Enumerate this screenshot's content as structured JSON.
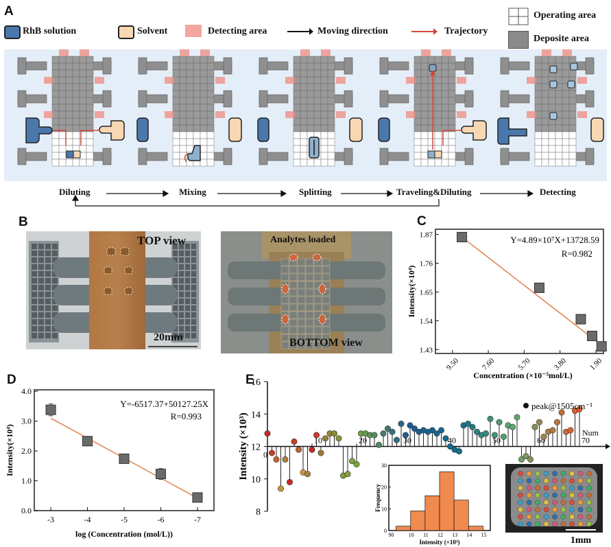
{
  "panels": {
    "a": "A",
    "b": "B",
    "c": "C",
    "d": "D",
    "e": "E"
  },
  "legend": {
    "rhb": "RhB solution",
    "solvent": "Solvent",
    "detecting": "Detecting area",
    "moving": "Moving direction",
    "trajectory": "Trajectory",
    "operating": "Operating area",
    "deposite": "Deposite area"
  },
  "steps": [
    "Diluting",
    "Mixing",
    "Splitting",
    "Traveling&Diluting",
    "Detecting"
  ],
  "photos": {
    "top_label": "TOP view",
    "scale": "20mm",
    "analytes": "Analytes loaded",
    "bottom_label": "BOTTOM view"
  },
  "colors": {
    "rhb": "#4a78ad",
    "solvent": "#f7d8b3",
    "detect": "#f08a80",
    "arrow": "#d2483a",
    "grid": "#9a9a9a",
    "light_bg": "#e4eef8"
  },
  "chart_data": [
    {
      "id": "C",
      "type": "scatter",
      "equation": "Y=4.89×10⁷X+13728.59",
      "r": "R=0.982",
      "xlabel": "Concentration (×10⁻⁵mol/L)",
      "ylabel": "Intensity(×10⁴)",
      "xticks": [
        "9.50",
        "7.60",
        "5.70",
        "3.80",
        "1.90"
      ],
      "yticks": [
        "1.43",
        "1.54",
        "1.65",
        "1.76",
        "1.87"
      ],
      "x": [
        9.0,
        4.9,
        2.7,
        2.1,
        1.6
      ],
      "y": [
        1.86,
        1.666,
        1.546,
        1.482,
        1.442
      ],
      "xlim": [
        10.4,
        1.5
      ],
      "ylim": [
        1.415,
        1.89
      ],
      "fit": {
        "x": [
          9.0,
          1.7
        ],
        "y": [
          1.86,
          1.452
        ]
      }
    },
    {
      "id": "D",
      "type": "scatter",
      "equation": "Y=-6517.37+50127.25X",
      "r": "R=0.993",
      "xlabel": "log (Concentration (mol/L))",
      "ylabel": "Intensity(×10⁴)",
      "xticks": [
        "-3",
        "-4",
        "-5",
        "-6",
        "-7"
      ],
      "yticks": [
        "0.0",
        "1.0",
        "2.0",
        "3.0",
        "4.0"
      ],
      "x": [
        -3,
        -4,
        -5,
        -6,
        -7
      ],
      "y": [
        3.38,
        2.33,
        1.74,
        1.23,
        0.44
      ],
      "err": [
        0.2,
        0.12,
        0.12,
        0.18,
        0.1
      ],
      "xlim": [
        -2.55,
        -7.45
      ],
      "ylim": [
        0,
        4.05
      ],
      "fit": {
        "x": [
          -3,
          -7
        ],
        "y": [
          3.1,
          0.42
        ]
      }
    },
    {
      "id": "E",
      "type": "stem",
      "legend": "peak@1505cm⁻¹",
      "ylabel": "Intensity (×10³)",
      "xlabel": "Num",
      "yticks": [
        "8",
        "10",
        "12",
        "14",
        "16"
      ],
      "xticks": [
        "0",
        "10",
        "20",
        "30",
        "40",
        "50",
        "60",
        "70"
      ],
      "baseline": 12,
      "values": [
        12.8,
        11.6,
        11.2,
        9.4,
        11.2,
        9.8,
        12.3,
        11.8,
        10.4,
        10.3,
        11.8,
        12.7,
        11.6,
        12.5,
        12.8,
        12.8,
        12.5,
        10.2,
        10.3,
        11.1,
        10.9,
        12.8,
        12.8,
        12.7,
        12.7,
        12.1,
        12.8,
        13.1,
        12.9,
        12.4,
        13.4,
        12.7,
        13.3,
        13.1,
        12.9,
        13.0,
        12.9,
        13.0,
        12.8,
        13.0,
        12.5,
        12.0,
        11.8,
        11.7,
        13.3,
        13.4,
        13.2,
        12.9,
        12.7,
        12.8,
        13.7,
        12.7,
        13.5,
        12.6,
        13.3,
        13.2,
        13.8,
        11.2,
        11.4,
        11.2,
        13.2,
        13.5,
        12.6,
        12.9,
        13.0,
        13.5,
        14.1,
        12.9,
        13.0,
        14.2,
        14.3
      ],
      "ylim": [
        8,
        16
      ],
      "xlim": [
        -3,
        76
      ]
    },
    {
      "id": "E-inset",
      "type": "bar",
      "ylabel": "Frequency",
      "xlabel": "Intensity (×10³)",
      "xticks": [
        "90",
        "10",
        "11",
        "12",
        "13",
        "14",
        "15"
      ],
      "yticks": [
        "0",
        "10",
        "20",
        "30"
      ],
      "categories": [
        "9.5",
        "10.5",
        "11.5",
        "12.5",
        "13.5",
        "14.5"
      ],
      "values": [
        2,
        9,
        16,
        27,
        14,
        2
      ],
      "ylim": [
        0,
        30
      ]
    }
  ],
  "inset_scale": "1mm"
}
